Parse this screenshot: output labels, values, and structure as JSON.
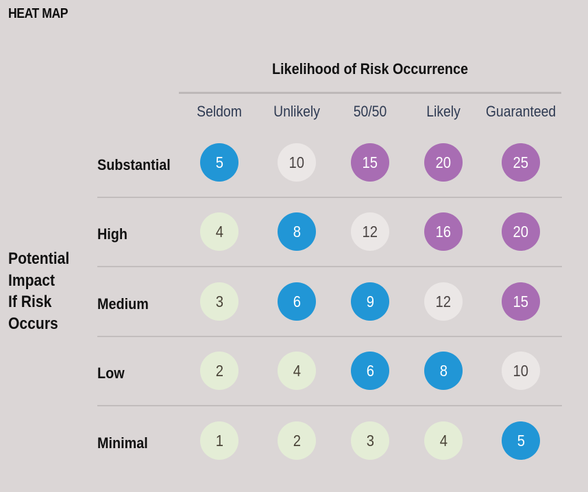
{
  "chart_data": {
    "type": "heatmap",
    "title": "HEAT MAP",
    "xlabel": "Likelihood of Risk Occurrence",
    "ylabel": [
      "Potential",
      "Impact",
      "If Risk",
      "Occurs"
    ],
    "x_categories": [
      "Seldom",
      "Unlikely",
      "50/50",
      "Likely",
      "Guaranteed"
    ],
    "y_categories": [
      "Substantial",
      "High",
      "Medium",
      "Low",
      "Minimal"
    ],
    "values": [
      [
        5,
        10,
        15,
        20,
        25
      ],
      [
        4,
        8,
        12,
        16,
        20
      ],
      [
        3,
        6,
        9,
        12,
        15
      ],
      [
        2,
        4,
        6,
        8,
        10
      ],
      [
        1,
        2,
        3,
        4,
        5
      ]
    ],
    "levels": [
      [
        "blue",
        "gray",
        "purple",
        "purple",
        "purple"
      ],
      [
        "green",
        "blue",
        "gray",
        "purple",
        "purple"
      ],
      [
        "green",
        "blue",
        "blue",
        "gray",
        "purple"
      ],
      [
        "green",
        "green",
        "blue",
        "blue",
        "gray"
      ],
      [
        "green",
        "green",
        "green",
        "green",
        "blue"
      ]
    ],
    "legend": null
  },
  "colors": {
    "green": {
      "fill": "#e4edd6",
      "text": "#4a4438"
    },
    "blue": {
      "fill": "#2196d6",
      "text": "#ffffff"
    },
    "gray": {
      "fill": "#ebe7e6",
      "text": "#4a4443"
    },
    "purple": {
      "fill": "#a86db3",
      "text": "#ffffff"
    },
    "background": "#dbd6d6"
  }
}
